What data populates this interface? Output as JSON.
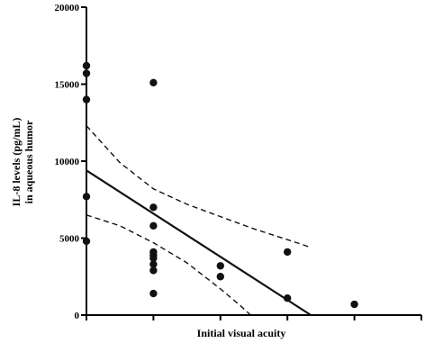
{
  "chart_data": {
    "type": "scatter",
    "title": "",
    "xlabel": "Initial visual acuity",
    "ylabel_lines": [
      "IL-8 levels (pg/mL)",
      "in aqueous humor"
    ],
    "xlim": [
      0,
      5
    ],
    "ylim": [
      0,
      20000
    ],
    "y_ticks": [
      0,
      5000,
      10000,
      15000,
      20000
    ],
    "y_tick_labels": [
      "0",
      "5000",
      "10000",
      "15000",
      "20000"
    ],
    "x_ticks": [
      0,
      1,
      2,
      3,
      4,
      5
    ],
    "grid": false,
    "points": [
      {
        "x": 0,
        "y": 16200
      },
      {
        "x": 0,
        "y": 15700
      },
      {
        "x": 0,
        "y": 14000
      },
      {
        "x": 0,
        "y": 7700
      },
      {
        "x": 0,
        "y": 4800
      },
      {
        "x": 1,
        "y": 15100
      },
      {
        "x": 1,
        "y": 7000
      },
      {
        "x": 1,
        "y": 5800
      },
      {
        "x": 1,
        "y": 4100
      },
      {
        "x": 1,
        "y": 3900
      },
      {
        "x": 1,
        "y": 3700
      },
      {
        "x": 1,
        "y": 3300
      },
      {
        "x": 1,
        "y": 2900
      },
      {
        "x": 1,
        "y": 1400
      },
      {
        "x": 2,
        "y": 3200
      },
      {
        "x": 2,
        "y": 2500
      },
      {
        "x": 3,
        "y": 4100
      },
      {
        "x": 3,
        "y": 1100
      },
      {
        "x": 4,
        "y": 700
      }
    ],
    "regression_line": {
      "x": [
        0,
        3.35
      ],
      "y": [
        9400,
        0
      ]
    },
    "ci_upper": {
      "x": [
        0,
        0.5,
        1,
        1.5,
        2,
        2.5,
        3,
        3.35
      ],
      "y": [
        12300,
        9900,
        8200,
        7200,
        6400,
        5600,
        4900,
        4400
      ]
    },
    "ci_lower": {
      "x": [
        0,
        0.5,
        1,
        1.5,
        2,
        2.3,
        2.45
      ],
      "y": [
        6500,
        5800,
        4700,
        3400,
        1700,
        600,
        0
      ]
    },
    "line_color": "#111111"
  }
}
